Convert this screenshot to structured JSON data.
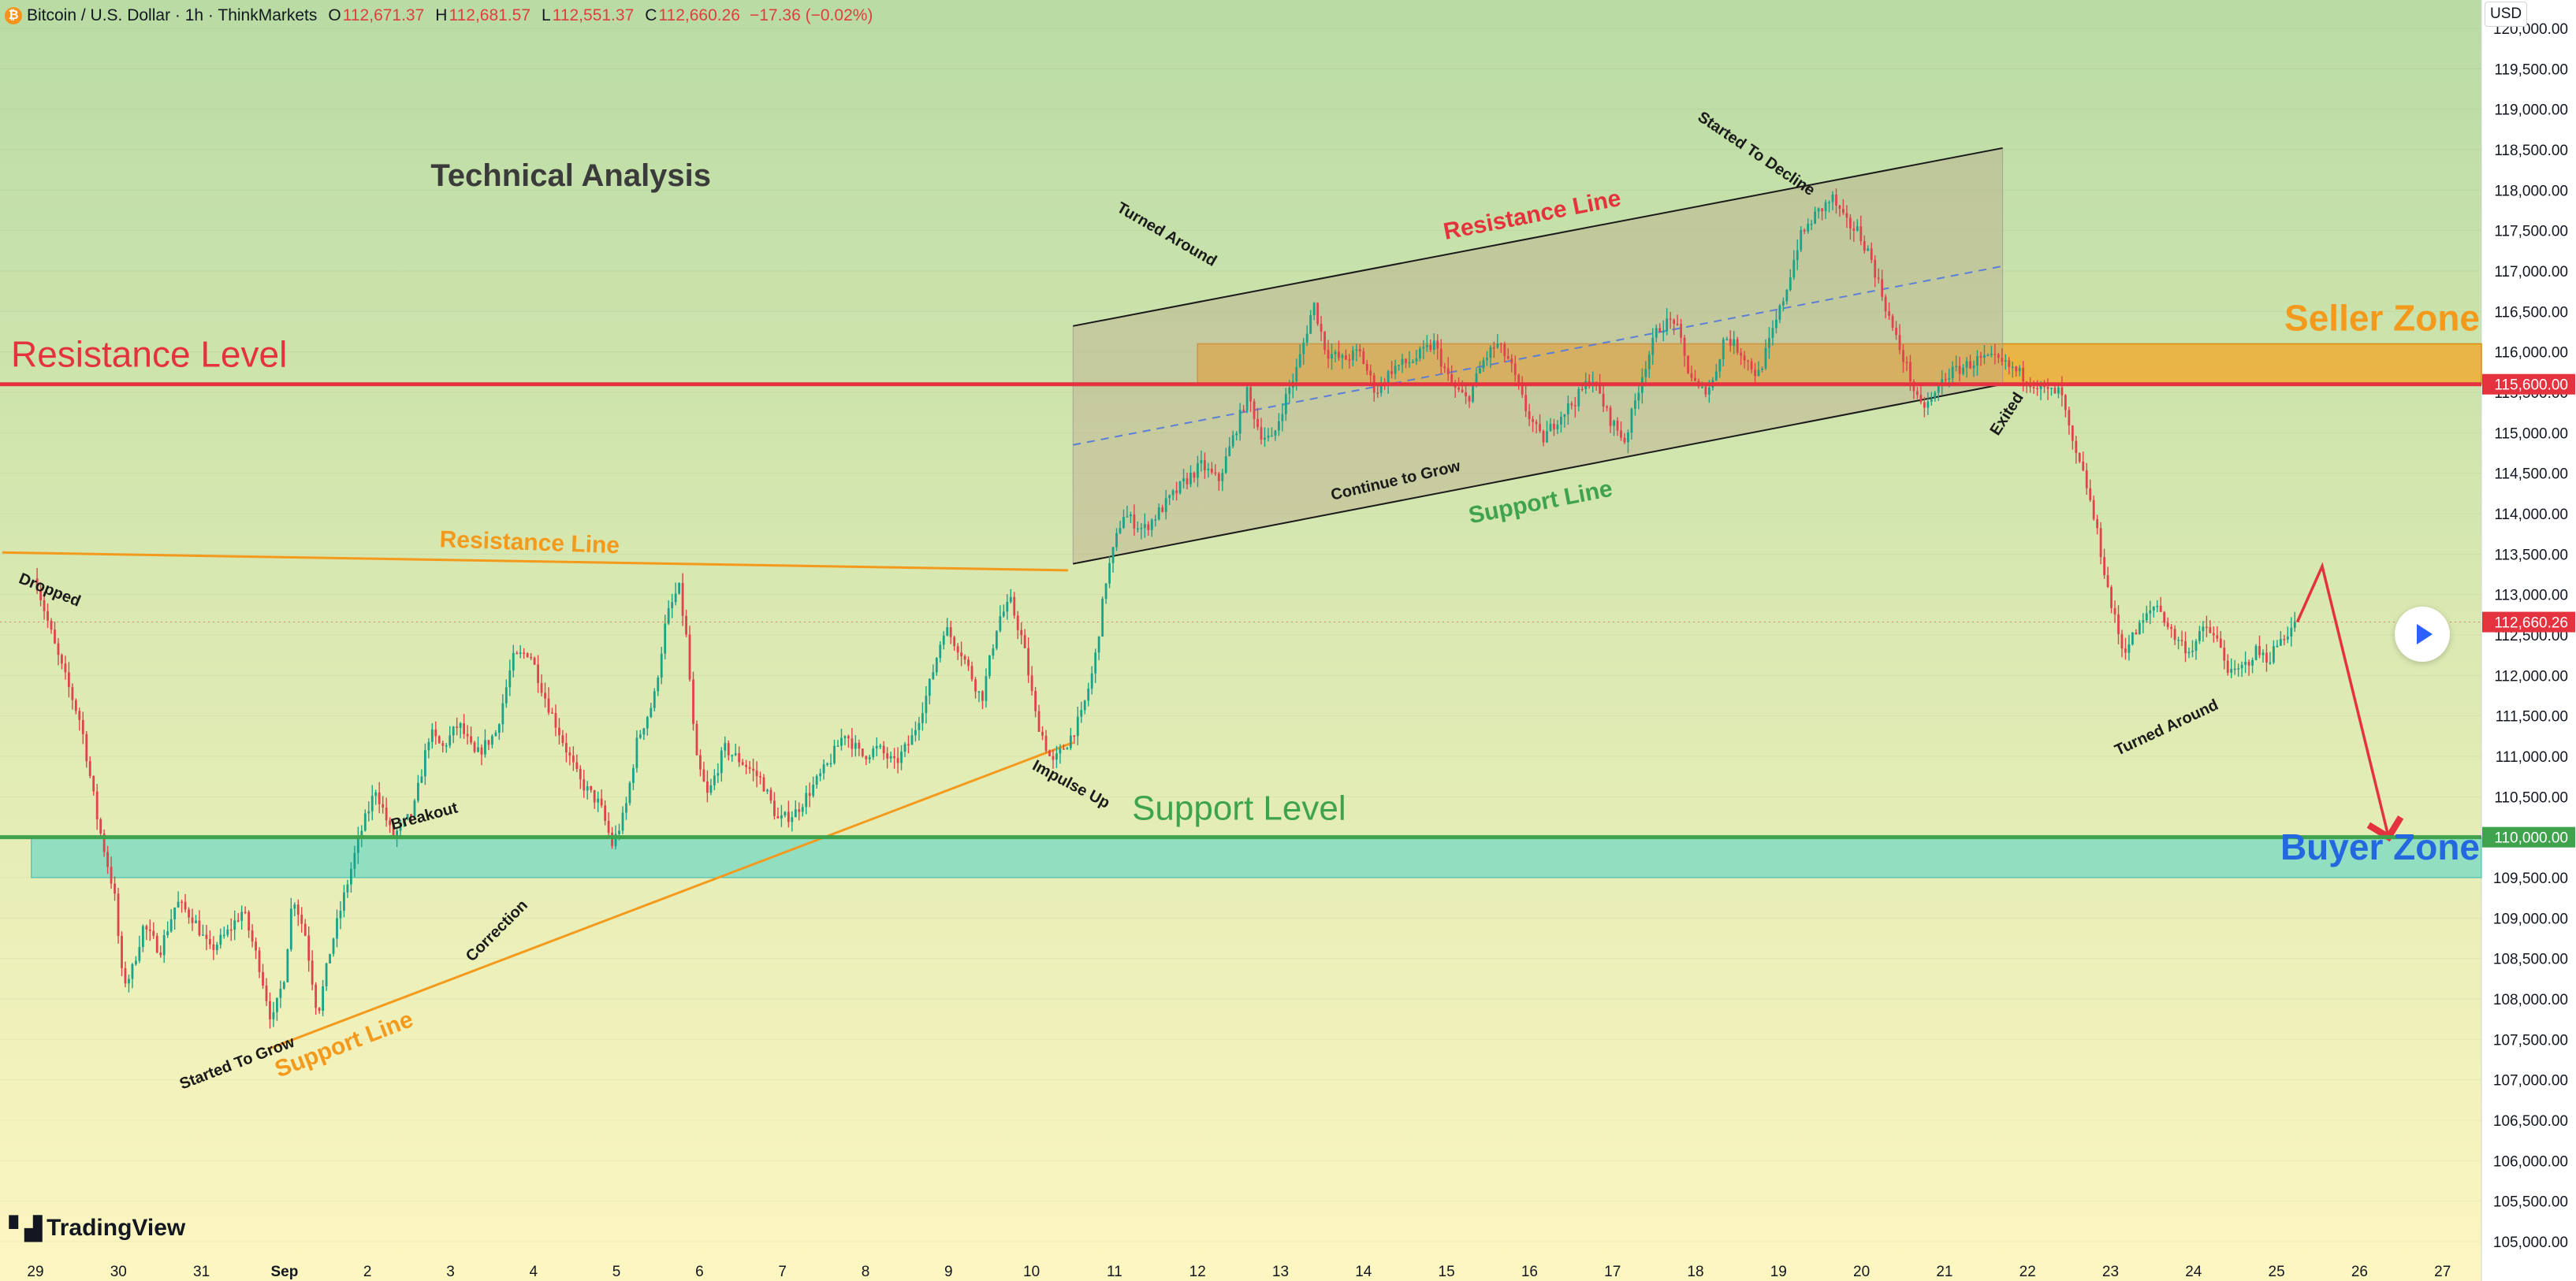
{
  "header": {
    "symbol": "Bitcoin / U.S. Dollar · 1h · ThinkMarkets",
    "open_label": "O",
    "open": "112,671.37",
    "high_label": "H",
    "high": "112,681.57",
    "low_label": "L",
    "low": "112,551.37",
    "close_label": "C",
    "close": "112,660.26",
    "change": "−17.36 (−0.02%)"
  },
  "currency": "USD",
  "brand": "TradingView",
  "colors": {
    "bg_top": "#b9dca4",
    "bg_bottom": "#fdf6c0",
    "resistance": "#e4323f",
    "support": "#3fa34d",
    "orange": "#f39a1c",
    "channel": "#1a1a1a",
    "seller_zone": "#f3a624",
    "buyer_zone": "#58d3c8",
    "arrow": "#e4323f",
    "buyer_label": "#2468e0",
    "candle_up": "#1aa28a",
    "candle_down": "#e0434e"
  },
  "chart_data": {
    "type": "candlestick",
    "title": "Technical Analysis",
    "instrument": "Bitcoin / U.S. Dollar",
    "timeframe": "1h",
    "ylim": [
      104800,
      120300
    ],
    "y_ticks": [
      "105,000.00",
      "105,500.00",
      "106,000.00",
      "106,500.00",
      "107,000.00",
      "107,500.00",
      "108,000.00",
      "108,500.00",
      "109,000.00",
      "109,500.00",
      "110,000.00",
      "110,500.00",
      "111,000.00",
      "111,500.00",
      "112,000.00",
      "112,500.00",
      "113,000.00",
      "113,500.00",
      "114,000.00",
      "114,500.00",
      "115,000.00",
      "115,500.00",
      "116,000.00",
      "116,500.00",
      "117,000.00",
      "117,500.00",
      "118,000.00",
      "118,500.00",
      "119,000.00",
      "119,500.00",
      "120,000.00"
    ],
    "x_ticks": [
      "29",
      "30",
      "31",
      "Sep",
      "2",
      "3",
      "4",
      "5",
      "6",
      "7",
      "8",
      "9",
      "10",
      "11",
      "12",
      "13",
      "14",
      "15",
      "16",
      "17",
      "18",
      "19",
      "20",
      "21",
      "22",
      "23",
      "24",
      "25",
      "26",
      "27"
    ],
    "price_path": [
      [
        0.0,
        113200
      ],
      [
        0.25,
        112300
      ],
      [
        0.55,
        111400
      ],
      [
        0.75,
        110200
      ],
      [
        0.95,
        109300
      ],
      [
        1.05,
        108200
      ],
      [
        1.15,
        108300
      ],
      [
        1.3,
        108900
      ],
      [
        1.5,
        108600
      ],
      [
        1.7,
        109200
      ],
      [
        1.9,
        109000
      ],
      [
        2.1,
        108600
      ],
      [
        2.3,
        108800
      ],
      [
        2.5,
        109100
      ],
      [
        2.7,
        108400
      ],
      [
        2.85,
        107700
      ],
      [
        3.0,
        108300
      ],
      [
        3.1,
        109300
      ],
      [
        3.25,
        108800
      ],
      [
        3.4,
        107800
      ],
      [
        3.55,
        108600
      ],
      [
        3.7,
        109200
      ],
      [
        3.9,
        110000
      ],
      [
        4.1,
        110600
      ],
      [
        4.3,
        110000
      ],
      [
        4.55,
        110300
      ],
      [
        4.75,
        111300
      ],
      [
        4.9,
        111100
      ],
      [
        5.1,
        111400
      ],
      [
        5.3,
        111000
      ],
      [
        5.55,
        111300
      ],
      [
        5.75,
        112200
      ],
      [
        5.95,
        112300
      ],
      [
        6.15,
        111700
      ],
      [
        6.35,
        111200
      ],
      [
        6.55,
        110700
      ],
      [
        6.8,
        110400
      ],
      [
        6.95,
        109900
      ],
      [
        7.1,
        110300
      ],
      [
        7.25,
        111200
      ],
      [
        7.45,
        111700
      ],
      [
        7.6,
        112700
      ],
      [
        7.75,
        113100
      ],
      [
        7.85,
        112400
      ],
      [
        7.95,
        111000
      ],
      [
        8.1,
        110500
      ],
      [
        8.3,
        111100
      ],
      [
        8.55,
        110900
      ],
      [
        8.75,
        110700
      ],
      [
        8.95,
        110200
      ],
      [
        9.15,
        110300
      ],
      [
        9.35,
        110600
      ],
      [
        9.55,
        110900
      ],
      [
        9.75,
        111300
      ],
      [
        9.95,
        111000
      ],
      [
        10.15,
        111100
      ],
      [
        10.35,
        110900
      ],
      [
        10.55,
        111200
      ],
      [
        10.75,
        111800
      ],
      [
        10.95,
        112600
      ],
      [
        11.15,
        112300
      ],
      [
        11.4,
        111700
      ],
      [
        11.6,
        112700
      ],
      [
        11.75,
        112900
      ],
      [
        11.9,
        112400
      ],
      [
        12.05,
        111500
      ],
      [
        12.25,
        110900
      ],
      [
        12.45,
        111200
      ],
      [
        12.6,
        111500
      ],
      [
        12.75,
        112100
      ],
      [
        12.9,
        113200
      ],
      [
        13.1,
        114000
      ],
      [
        13.35,
        113800
      ],
      [
        13.6,
        114100
      ],
      [
        13.85,
        114400
      ],
      [
        14.05,
        114600
      ],
      [
        14.25,
        114400
      ],
      [
        14.45,
        115000
      ],
      [
        14.6,
        115500
      ],
      [
        14.75,
        115000
      ],
      [
        14.9,
        114900
      ],
      [
        15.05,
        115400
      ],
      [
        15.2,
        115800
      ],
      [
        15.4,
        116600
      ],
      [
        15.55,
        116000
      ],
      [
        15.75,
        115900
      ],
      [
        15.95,
        116000
      ],
      [
        16.15,
        115500
      ],
      [
        16.35,
        115800
      ],
      [
        16.6,
        115900
      ],
      [
        16.85,
        116100
      ],
      [
        17.05,
        115600
      ],
      [
        17.25,
        115400
      ],
      [
        17.45,
        115900
      ],
      [
        17.6,
        116100
      ],
      [
        17.75,
        115900
      ],
      [
        17.95,
        115300
      ],
      [
        18.15,
        114900
      ],
      [
        18.35,
        115200
      ],
      [
        18.55,
        115400
      ],
      [
        18.75,
        115700
      ],
      [
        18.95,
        115200
      ],
      [
        19.15,
        114900
      ],
      [
        19.35,
        115700
      ],
      [
        19.55,
        116300
      ],
      [
        19.75,
        116400
      ],
      [
        19.9,
        115800
      ],
      [
        20.05,
        115500
      ],
      [
        20.2,
        115600
      ],
      [
        20.35,
        116200
      ],
      [
        20.55,
        116000
      ],
      [
        20.75,
        115700
      ],
      [
        20.95,
        116300
      ],
      [
        21.1,
        116800
      ],
      [
        21.25,
        117400
      ],
      [
        21.45,
        117700
      ],
      [
        21.65,
        117900
      ],
      [
        21.8,
        117600
      ],
      [
        21.95,
        117500
      ],
      [
        22.1,
        117200
      ],
      [
        22.25,
        116700
      ],
      [
        22.4,
        116200
      ],
      [
        22.55,
        115800
      ],
      [
        22.7,
        115300
      ],
      [
        22.85,
        115400
      ],
      [
        23.0,
        115700
      ],
      [
        23.2,
        115800
      ],
      [
        23.4,
        115900
      ],
      [
        23.6,
        115900
      ],
      [
        23.8,
        115800
      ],
      [
        23.95,
        115700
      ],
      [
        24.1,
        115600
      ],
      [
        24.25,
        115500
      ],
      [
        24.4,
        115500
      ],
      [
        24.55,
        114800
      ],
      [
        24.7,
        114400
      ],
      [
        24.85,
        113700
      ],
      [
        25.0,
        112900
      ],
      [
        25.15,
        112300
      ],
      [
        25.35,
        112600
      ],
      [
        25.55,
        112900
      ],
      [
        25.75,
        112500
      ],
      [
        25.95,
        112300
      ],
      [
        26.15,
        112600
      ],
      [
        26.3,
        112400
      ],
      [
        26.45,
        112000
      ],
      [
        26.6,
        112100
      ],
      [
        26.75,
        112300
      ],
      [
        26.9,
        112200
      ],
      [
        27.05,
        112450
      ],
      [
        27.25,
        112660
      ]
    ],
    "forecast_path": [
      [
        27.25,
        112660
      ],
      [
        27.55,
        113350
      ],
      [
        28.35,
        110000
      ]
    ],
    "levels": [
      {
        "label": "Resistance Level",
        "price": 115600,
        "price_label": "115,600.00"
      },
      {
        "label": "Support Level",
        "price": 110000,
        "price_label": "110,000.00"
      }
    ],
    "current_price": {
      "price": 112660.26,
      "label": "112,660.26"
    },
    "zones": [
      {
        "label": "Seller Zone",
        "from": 115600,
        "to": 116100
      },
      {
        "label": "Buyer Zone",
        "from": 109500,
        "to": 110000
      }
    ],
    "lines": [
      {
        "label": "Resistance Line",
        "kind": "orange",
        "p1": [
          -0.4,
          113520
        ],
        "p2": [
          12.44,
          113300
        ]
      },
      {
        "label": "Support Line",
        "kind": "orange",
        "p1": [
          2.8,
          107380
        ],
        "p2": [
          12.5,
          111170
        ]
      },
      {
        "label": "Resistance Line",
        "kind": "channel",
        "p1": [
          12.5,
          116320
        ],
        "p2": [
          23.7,
          118520
        ]
      },
      {
        "label": "Support Line",
        "kind": "channel",
        "p1": [
          12.5,
          113380
        ],
        "p2": [
          23.7,
          115600
        ]
      },
      {
        "label": "",
        "kind": "mid",
        "p1": [
          12.5,
          114850
        ],
        "p2": [
          23.7,
          117060
        ]
      }
    ],
    "annotations": [
      "Dropped",
      "Started To Grow",
      "Breakout",
      "Correction",
      "Impulse Up",
      "Turned Around",
      "Continue to Grow",
      "Started To Decline",
      "Exited",
      "Turned Around"
    ]
  }
}
